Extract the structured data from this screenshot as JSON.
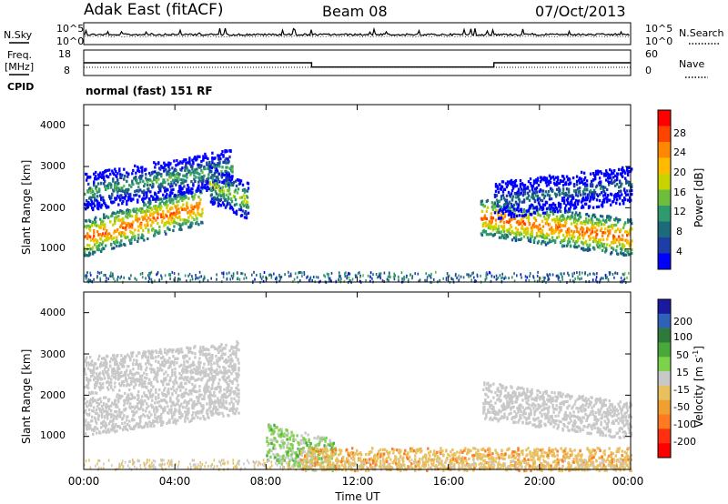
{
  "header": {
    "station": "Adak East (fitACF)",
    "beam": "Beam 08",
    "date": "07/Oct/2013"
  },
  "noise_panel": {
    "left_label": "N.Sky",
    "right_label": "N.Search",
    "left_ticks": [
      "10^5",
      "10^0"
    ],
    "right_ticks": [
      "10^5",
      "10^0"
    ]
  },
  "freq_panel": {
    "left_label_line1": "Freq.",
    "left_label_line2": "[MHz]",
    "left_ticks": [
      "18",
      "8"
    ],
    "right_label": "Nave",
    "right_ticks": [
      "60",
      "0"
    ],
    "cpid_label": "CPID",
    "cpid_text": "normal (fast) 151 RF"
  },
  "power_panel": {
    "ylabel": "Slant Range [km]",
    "yticks": [
      "4000",
      "3000",
      "2000",
      "1000"
    ],
    "colorbar_label": "Power [dB]",
    "colorbar_ticks": [
      "28",
      "24",
      "20",
      "16",
      "12",
      "8",
      "4"
    ],
    "colorbar_colors": [
      "#ff0000",
      "#ff4400",
      "#ff8800",
      "#ffbb00",
      "#c8d400",
      "#6cbe3c",
      "#2e9a6e",
      "#1c6a7a",
      "#1c3ea6",
      "#0000ff"
    ]
  },
  "velocity_panel": {
    "ylabel": "Slant Range [km]",
    "yticks": [
      "4000",
      "3000",
      "2000",
      "1000"
    ],
    "colorbar_label": "Velocity [m s",
    "colorbar_label_sup": "-1",
    "colorbar_label_end": "]",
    "colorbar_ticks": [
      "200",
      "100",
      "50",
      "15",
      "-15",
      "-50",
      "-100",
      "-200"
    ],
    "colorbar_colors": [
      "#1a1aa0",
      "#2e62b8",
      "#2f7a3a",
      "#48a83a",
      "#7cd24a",
      "#c8c8c8",
      "#e8c060",
      "#f0a030",
      "#ff7a20",
      "#ff3010",
      "#ff0000"
    ]
  },
  "x_axis": {
    "ticks": [
      "00:00",
      "04:00",
      "08:00",
      "12:00",
      "16:00",
      "20:00",
      "00:00"
    ],
    "label": "Time UT"
  },
  "chart_data": {
    "type": "heatmap",
    "title": "Adak East (fitACF) Beam 08 07/Oct/2013",
    "xlabel": "Time UT",
    "ylabel": "Slant Range [km]",
    "xlim_hours": [
      0,
      24
    ],
    "ylim_km": [
      200,
      4500
    ],
    "frequency_mhz": [
      {
        "from_hour": 0,
        "to_hour": 10,
        "value": 12
      },
      {
        "from_hour": 10,
        "to_hour": 18,
        "value": 10
      },
      {
        "from_hour": 18,
        "to_hour": 24,
        "value": 12
      }
    ],
    "power_bands": [
      {
        "t0": 0,
        "t1": 5.2,
        "r_start": 1300,
        "r_end": 2100,
        "db": 28
      },
      {
        "t0": 0,
        "t1": 6.5,
        "r_start": 2400,
        "r_end": 3000,
        "db": 16
      },
      {
        "t0": 5.5,
        "t1": 7.2,
        "r_start": 2600,
        "r_end": 2200,
        "db": 20
      },
      {
        "t0": 17.4,
        "t1": 24,
        "r_start": 1800,
        "r_end": 1300,
        "db": 28
      },
      {
        "t0": 18,
        "t1": 24,
        "r_start": 2200,
        "r_end": 2600,
        "db": 12
      }
    ],
    "velocity_bands": [
      {
        "t0": 0,
        "t1": 6.8,
        "r_start": 1500,
        "r_end": 2000,
        "mps": 0
      },
      {
        "t0": 0,
        "t1": 6.8,
        "r_start": 2500,
        "r_end": 2900,
        "mps": 0
      },
      {
        "t0": 17.5,
        "t1": 24,
        "r_start": 1900,
        "r_end": 1400,
        "mps": 0
      },
      {
        "t0": 8,
        "t1": 11,
        "r_start": 900,
        "r_end": 500,
        "mps": 20
      },
      {
        "t0": 9.5,
        "t1": 24,
        "r_start": 300,
        "r_end": 300,
        "mps": -40
      }
    ]
  }
}
